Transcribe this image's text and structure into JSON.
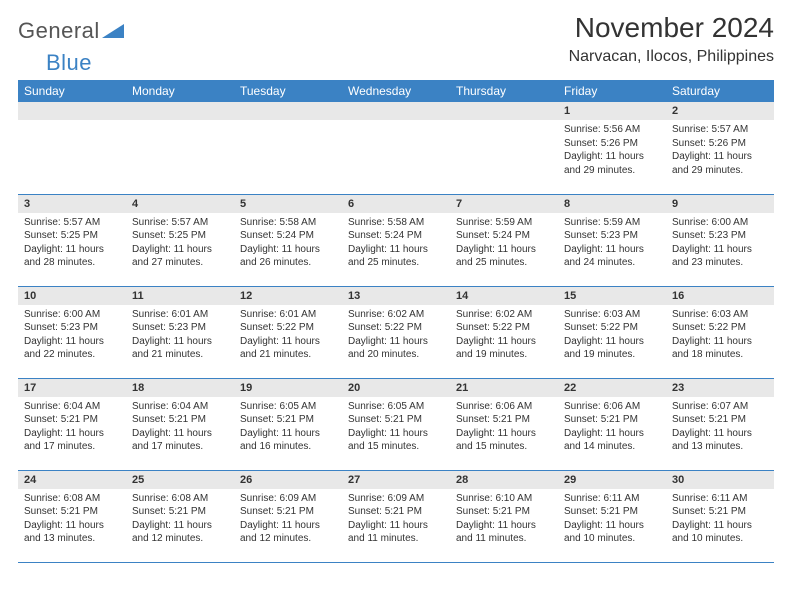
{
  "logo": {
    "text1": "General",
    "text2": "Blue"
  },
  "title": "November 2024",
  "location": "Narvacan, Ilocos, Philippines",
  "colors": {
    "header_bg": "#3b82c4",
    "header_text": "#ffffff",
    "day_header_bg": "#e8e8e8",
    "border": "#3b82c4",
    "text": "#333333",
    "background": "#ffffff"
  },
  "daysOfWeek": [
    "Sunday",
    "Monday",
    "Tuesday",
    "Wednesday",
    "Thursday",
    "Friday",
    "Saturday"
  ],
  "weeks": [
    [
      null,
      null,
      null,
      null,
      null,
      {
        "num": "1",
        "sunrise": "5:56 AM",
        "sunset": "5:26 PM",
        "daylight": "11 hours and 29 minutes."
      },
      {
        "num": "2",
        "sunrise": "5:57 AM",
        "sunset": "5:26 PM",
        "daylight": "11 hours and 29 minutes."
      }
    ],
    [
      {
        "num": "3",
        "sunrise": "5:57 AM",
        "sunset": "5:25 PM",
        "daylight": "11 hours and 28 minutes."
      },
      {
        "num": "4",
        "sunrise": "5:57 AM",
        "sunset": "5:25 PM",
        "daylight": "11 hours and 27 minutes."
      },
      {
        "num": "5",
        "sunrise": "5:58 AM",
        "sunset": "5:24 PM",
        "daylight": "11 hours and 26 minutes."
      },
      {
        "num": "6",
        "sunrise": "5:58 AM",
        "sunset": "5:24 PM",
        "daylight": "11 hours and 25 minutes."
      },
      {
        "num": "7",
        "sunrise": "5:59 AM",
        "sunset": "5:24 PM",
        "daylight": "11 hours and 25 minutes."
      },
      {
        "num": "8",
        "sunrise": "5:59 AM",
        "sunset": "5:23 PM",
        "daylight": "11 hours and 24 minutes."
      },
      {
        "num": "9",
        "sunrise": "6:00 AM",
        "sunset": "5:23 PM",
        "daylight": "11 hours and 23 minutes."
      }
    ],
    [
      {
        "num": "10",
        "sunrise": "6:00 AM",
        "sunset": "5:23 PM",
        "daylight": "11 hours and 22 minutes."
      },
      {
        "num": "11",
        "sunrise": "6:01 AM",
        "sunset": "5:23 PM",
        "daylight": "11 hours and 21 minutes."
      },
      {
        "num": "12",
        "sunrise": "6:01 AM",
        "sunset": "5:22 PM",
        "daylight": "11 hours and 21 minutes."
      },
      {
        "num": "13",
        "sunrise": "6:02 AM",
        "sunset": "5:22 PM",
        "daylight": "11 hours and 20 minutes."
      },
      {
        "num": "14",
        "sunrise": "6:02 AM",
        "sunset": "5:22 PM",
        "daylight": "11 hours and 19 minutes."
      },
      {
        "num": "15",
        "sunrise": "6:03 AM",
        "sunset": "5:22 PM",
        "daylight": "11 hours and 19 minutes."
      },
      {
        "num": "16",
        "sunrise": "6:03 AM",
        "sunset": "5:22 PM",
        "daylight": "11 hours and 18 minutes."
      }
    ],
    [
      {
        "num": "17",
        "sunrise": "6:04 AM",
        "sunset": "5:21 PM",
        "daylight": "11 hours and 17 minutes."
      },
      {
        "num": "18",
        "sunrise": "6:04 AM",
        "sunset": "5:21 PM",
        "daylight": "11 hours and 17 minutes."
      },
      {
        "num": "19",
        "sunrise": "6:05 AM",
        "sunset": "5:21 PM",
        "daylight": "11 hours and 16 minutes."
      },
      {
        "num": "20",
        "sunrise": "6:05 AM",
        "sunset": "5:21 PM",
        "daylight": "11 hours and 15 minutes."
      },
      {
        "num": "21",
        "sunrise": "6:06 AM",
        "sunset": "5:21 PM",
        "daylight": "11 hours and 15 minutes."
      },
      {
        "num": "22",
        "sunrise": "6:06 AM",
        "sunset": "5:21 PM",
        "daylight": "11 hours and 14 minutes."
      },
      {
        "num": "23",
        "sunrise": "6:07 AM",
        "sunset": "5:21 PM",
        "daylight": "11 hours and 13 minutes."
      }
    ],
    [
      {
        "num": "24",
        "sunrise": "6:08 AM",
        "sunset": "5:21 PM",
        "daylight": "11 hours and 13 minutes."
      },
      {
        "num": "25",
        "sunrise": "6:08 AM",
        "sunset": "5:21 PM",
        "daylight": "11 hours and 12 minutes."
      },
      {
        "num": "26",
        "sunrise": "6:09 AM",
        "sunset": "5:21 PM",
        "daylight": "11 hours and 12 minutes."
      },
      {
        "num": "27",
        "sunrise": "6:09 AM",
        "sunset": "5:21 PM",
        "daylight": "11 hours and 11 minutes."
      },
      {
        "num": "28",
        "sunrise": "6:10 AM",
        "sunset": "5:21 PM",
        "daylight": "11 hours and 11 minutes."
      },
      {
        "num": "29",
        "sunrise": "6:11 AM",
        "sunset": "5:21 PM",
        "daylight": "11 hours and 10 minutes."
      },
      {
        "num": "30",
        "sunrise": "6:11 AM",
        "sunset": "5:21 PM",
        "daylight": "11 hours and 10 minutes."
      }
    ]
  ],
  "labels": {
    "sunrise_prefix": "Sunrise: ",
    "sunset_prefix": "Sunset: ",
    "daylight_prefix": "Daylight: "
  }
}
